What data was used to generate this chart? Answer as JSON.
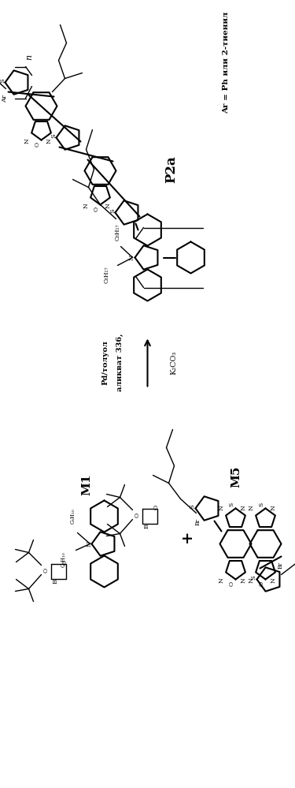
{
  "background_color": "#ffffff",
  "labels": {
    "product_label": "P2a",
    "reactant1_label": "M1",
    "reactant2_label": "M5",
    "reaction_condition1": "аликват 336,",
    "reaction_condition2": "Pd/толуол",
    "reaction_condition3": "K₂CO₃",
    "note": "Ar = Ph или 2-тиенил",
    "n_label": "n",
    "plus_sign": "+"
  }
}
